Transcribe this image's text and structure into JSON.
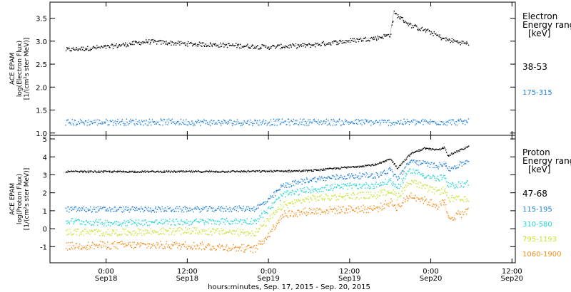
{
  "chart_data": [
    {
      "type": "scatter",
      "panel": "electron",
      "ylabel_lines": [
        "ACE EPAM",
        "log(Electron Flux)",
        "[1/(cm²s ster MeV)]"
      ],
      "ylim": [
        0.95,
        3.85
      ],
      "yticks": [
        "1.0",
        "1.5",
        "2.0",
        "2.5",
        "3.0",
        "3.5"
      ],
      "legend_title": [
        "Electron",
        "Energy ranges",
        "[keV]"
      ],
      "series": [
        {
          "name": "38-53",
          "color": "#000000",
          "x": [
            -6,
            0,
            6,
            12,
            18,
            24,
            30,
            36,
            40,
            42,
            42.5,
            45,
            48,
            50,
            53.5
          ],
          "y": [
            2.82,
            2.88,
            3.0,
            2.95,
            2.92,
            2.88,
            2.92,
            3.02,
            3.08,
            3.15,
            3.62,
            3.35,
            3.2,
            3.05,
            2.95
          ]
        },
        {
          "name": "175-315",
          "color": "#1e7fd6",
          "x": [
            -6,
            6,
            18,
            30,
            42,
            53.5
          ],
          "y": [
            1.24,
            1.25,
            1.24,
            1.25,
            1.24,
            1.25
          ]
        }
      ]
    },
    {
      "type": "scatter",
      "panel": "proton",
      "ylabel_lines": [
        "ACE EPAM",
        "log(Proton Flux)",
        "[1/(cm²s ster MeV)]"
      ],
      "ylim": [
        -1.9,
        5.2
      ],
      "yticks": [
        "-1",
        "0",
        "1",
        "2",
        "3",
        "4",
        "5"
      ],
      "legend_title": [
        "Proton",
        "Energy ranges",
        "[keV]"
      ],
      "series": [
        {
          "name": "47-68",
          "color": "#000000",
          "x": [
            -6,
            0,
            12,
            24,
            30,
            36,
            40,
            42,
            43,
            45,
            47,
            49,
            50,
            50.5,
            53.5
          ],
          "y": [
            3.2,
            3.2,
            3.2,
            3.22,
            3.25,
            3.45,
            3.6,
            3.9,
            3.4,
            4.2,
            4.5,
            4.4,
            4.55,
            4.1,
            4.6
          ]
        },
        {
          "name": "115-195",
          "color": "#1e7fd6",
          "x": [
            -6,
            0,
            12,
            22,
            24,
            26,
            30,
            36,
            40,
            42,
            43,
            45,
            47,
            49,
            50,
            50.5,
            53.5
          ],
          "y": [
            1.1,
            1.1,
            1.1,
            1.15,
            1.6,
            2.4,
            2.75,
            2.95,
            3.0,
            3.3,
            2.8,
            3.8,
            3.65,
            3.5,
            3.75,
            3.3,
            3.8
          ]
        },
        {
          "name": "310-580",
          "color": "#22d6d0",
          "x": [
            -6,
            0,
            12,
            22,
            24,
            26,
            30,
            36,
            40,
            42,
            43,
            45,
            47,
            49,
            50,
            50.5,
            53.5
          ],
          "y": [
            0.45,
            0.35,
            0.4,
            0.45,
            1.1,
            1.9,
            2.2,
            2.4,
            2.45,
            2.7,
            2.3,
            3.3,
            3.0,
            2.8,
            2.9,
            2.4,
            2.55
          ]
        },
        {
          "name": "795-1193",
          "color": "#c6e234",
          "x": [
            -6,
            0,
            12,
            22,
            24,
            26,
            30,
            36,
            40,
            42,
            43,
            45,
            47,
            49,
            50,
            50.5,
            53.5
          ],
          "y": [
            -0.15,
            -0.2,
            -0.1,
            -0.2,
            0.5,
            1.3,
            1.7,
            1.85,
            1.9,
            2.15,
            1.8,
            2.7,
            2.3,
            2.1,
            2.2,
            1.7,
            1.6
          ]
        },
        {
          "name": "1060-1900",
          "color": "#f08c1a",
          "x": [
            -6,
            0,
            12,
            22,
            24,
            26,
            30,
            36,
            40,
            42,
            43,
            45,
            47,
            49,
            50,
            50.5,
            53.5
          ],
          "y": [
            -0.95,
            -0.9,
            -0.9,
            -1.1,
            -0.3,
            0.8,
            1.0,
            1.1,
            1.15,
            1.5,
            1.2,
            1.9,
            1.6,
            1.3,
            1.5,
            0.6,
            1.0
          ]
        }
      ]
    }
  ],
  "xaxis": {
    "xlim": [
      -8.3,
      60.5
    ],
    "ticks": [
      {
        "x": 0,
        "line1": "0:00",
        "line2": "Sep18"
      },
      {
        "x": 12,
        "line1": "12:00",
        "line2": "Sep18"
      },
      {
        "x": 24,
        "line1": "0:00",
        "line2": "Sep19"
      },
      {
        "x": 36,
        "line1": "12:00",
        "line2": "Sep19"
      },
      {
        "x": 48,
        "line1": "0:00",
        "line2": "Sep20"
      },
      {
        "x": 60,
        "line1": "12:00",
        "line2": "Sep20"
      }
    ],
    "label": "hours:minutes, Sep. 17, 2015 - Sep. 20, 2015"
  }
}
